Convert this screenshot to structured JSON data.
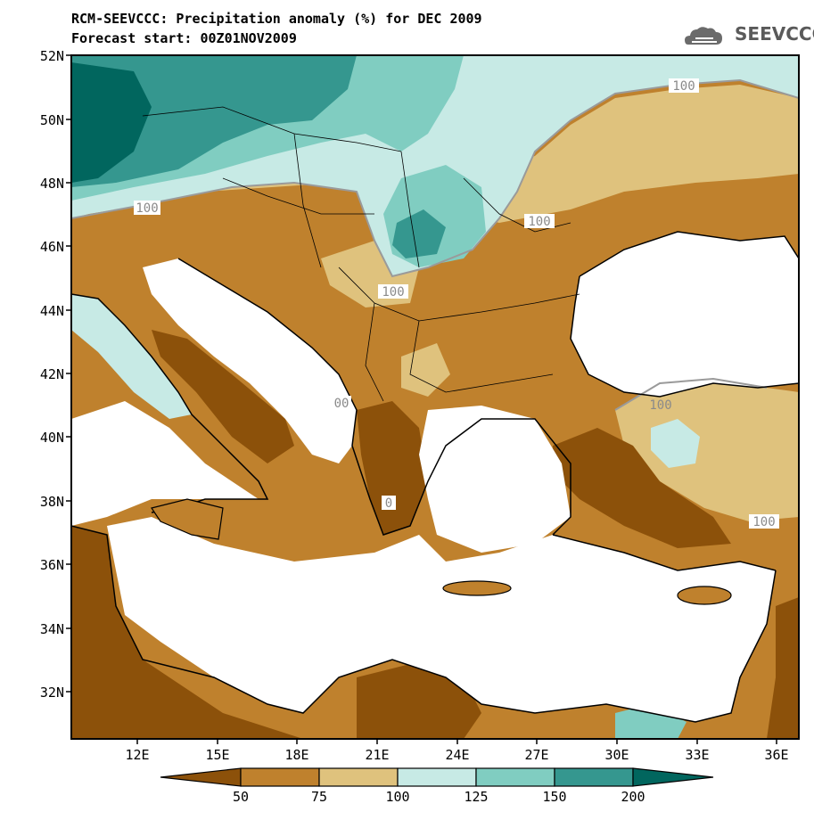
{
  "title": "RCM-SEEVCCC: Precipitation anomaly (%) for DEC 2009",
  "subtitle": "Forecast start: 00Z01NOV2009",
  "logo": {
    "text": "SEEVCCC",
    "icon": "cloud-logo-icon"
  },
  "axes": {
    "lat_labels": [
      "52N",
      "50N",
      "48N",
      "46N",
      "44N",
      "42N",
      "40N",
      "38N",
      "36N",
      "34N",
      "32N"
    ],
    "lon_labels": [
      "12E",
      "15E",
      "18E",
      "21E",
      "24E",
      "27E",
      "30E",
      "33E",
      "36E"
    ]
  },
  "contour_labels": [
    "100",
    "100",
    "100",
    "100",
    "100",
    "100",
    "00",
    "0"
  ],
  "colorbar": {
    "ticks": [
      "50",
      "75",
      "100",
      "125",
      "150",
      "200"
    ],
    "colors": [
      "#8c510a",
      "#bf812d",
      "#dfc27d",
      "#c7eae5",
      "#80cdc1",
      "#35978f",
      "#01665e"
    ]
  },
  "colors": {
    "ocean": "#ffffff",
    "dry_strong": "#8c510a",
    "dry": "#bf812d",
    "dry_light": "#dfc27d",
    "wet_light": "#c7eae5",
    "wet": "#80cdc1",
    "wet_strong": "#35978f",
    "wet_extreme": "#01665e"
  }
}
